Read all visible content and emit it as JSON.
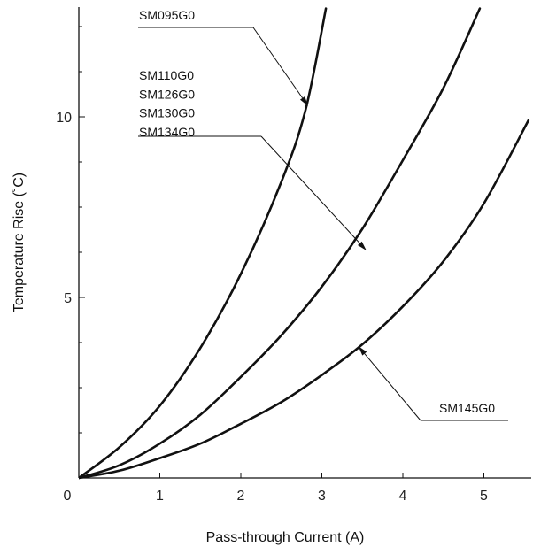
{
  "chart_data": {
    "type": "line",
    "title": "",
    "xlabel": "Pass-through Current (A)",
    "ylabel": "Temperature Rise (˚C)",
    "xlim": [
      0,
      5.6
    ],
    "ylim": [
      0,
      13
    ],
    "x_ticks": [
      {
        "value": 0,
        "label": "0"
      },
      {
        "value": 1,
        "label": "1"
      },
      {
        "value": 2,
        "label": "2"
      },
      {
        "value": 3,
        "label": "3"
      },
      {
        "value": 4,
        "label": "4"
      },
      {
        "value": 5,
        "label": "5"
      }
    ],
    "y_ticks": [
      {
        "value": 5,
        "label": "5"
      },
      {
        "value": 10,
        "label": "10"
      }
    ],
    "y_minor_ticks": [
      1.25,
      2.5,
      3.75,
      6.25,
      7.5,
      8.75,
      11.25,
      12.5
    ],
    "grid": false,
    "series": [
      {
        "name": "SM095G0",
        "x": [
          0,
          0.5,
          1,
          1.5,
          2,
          2.5,
          2.8,
          3.05
        ],
        "y": [
          0,
          0.85,
          2.0,
          3.6,
          5.65,
          8.2,
          10.2,
          13.0
        ]
      },
      {
        "name": "SM110G0 / SM126G0 / SM130G0 / SM134G0",
        "x": [
          0,
          0.5,
          1,
          1.5,
          2,
          2.5,
          3,
          3.5,
          4,
          4.5,
          4.95
        ],
        "y": [
          0,
          0.35,
          0.95,
          1.75,
          2.8,
          3.95,
          5.3,
          6.9,
          8.8,
          10.8,
          13.0
        ]
      },
      {
        "name": "SM145G0",
        "x": [
          0,
          0.5,
          1,
          1.5,
          2,
          2.5,
          3,
          3.5,
          4,
          4.5,
          5,
          5.55
        ],
        "y": [
          0,
          0.2,
          0.55,
          0.95,
          1.5,
          2.1,
          2.85,
          3.7,
          4.75,
          6.0,
          7.6,
          9.9
        ]
      }
    ],
    "annotations": [
      {
        "series": 0,
        "lines": [
          "SM095G0"
        ],
        "arrow_target": [
          2.83,
          10.3
        ]
      },
      {
        "series": 1,
        "lines": [
          "SM110G0",
          "SM126G0",
          "SM130G0",
          "SM134G0"
        ],
        "arrow_target": [
          3.55,
          6.3
        ]
      },
      {
        "series": 2,
        "lines": [
          "SM145G0"
        ],
        "arrow_target": [
          3.45,
          3.65
        ]
      }
    ]
  }
}
